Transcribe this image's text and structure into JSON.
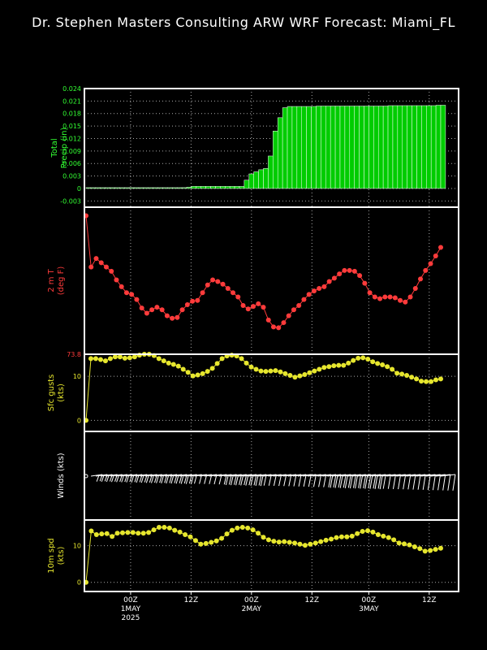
{
  "header": {
    "title": "Dr. Stephen Masters Consulting  ARW WRF Forecast: Miami_FL"
  },
  "colors": {
    "background": "#000000",
    "frame": "#ffffff",
    "grid": "#aaaaaa",
    "precip": "#00cc00",
    "precip_text": "#33ff33",
    "temp": "#ff3b3b",
    "gust": "#e6e62e",
    "wind": "#ffffff"
  },
  "chart_data": [
    {
      "id": "precip",
      "type": "bar",
      "ylabel": [
        "Total",
        "Precip (in)"
      ],
      "yticks": [
        "0.024",
        "0.021",
        "0.018",
        "0.015",
        "0.012",
        "0.009",
        "0.006",
        "0.003",
        "0",
        "-0.003"
      ],
      "ylim": [
        -0.0045,
        0.024
      ],
      "grid": true,
      "values": [
        0,
        0,
        0,
        0,
        0,
        0,
        0,
        0,
        0,
        0,
        0,
        0,
        0,
        0,
        0,
        0,
        0,
        0,
        0,
        0,
        0.0002,
        0.0003,
        0.0005,
        0.0005,
        0.0005,
        0.0005,
        0.0005,
        0.0005,
        0.0005,
        0.0005,
        0.0005,
        0.0005,
        0.0005,
        0.002,
        0.0035,
        0.004,
        0.0045,
        0.0048,
        0.0078,
        0.0138,
        0.017,
        0.0194,
        0.0197,
        0.0197,
        0.0197,
        0.0197,
        0.0197,
        0.0197,
        0.0198,
        0.0198,
        0.0198,
        0.0198,
        0.0198,
        0.0198,
        0.0198,
        0.0198,
        0.0198,
        0.0198,
        0.0198,
        0.0198,
        0.0198,
        0.0198,
        0.0198,
        0.0199,
        0.0199,
        0.0199,
        0.0199,
        0.0199,
        0.0199,
        0.0199,
        0.0199,
        0.0199,
        0.0199,
        0.02,
        0.02
      ]
    },
    {
      "id": "temp",
      "type": "line",
      "ylabel": [
        "2 m T",
        "(deg F)"
      ],
      "yticks": [
        "73.8"
      ],
      "ylim": [
        73.8,
        91
      ],
      "values": [
        90,
        84,
        85,
        84.5,
        84,
        83.5,
        82.5,
        81.7,
        81,
        80.8,
        80.2,
        79.2,
        78.6,
        79,
        79.3,
        79,
        78.3,
        78,
        78.1,
        79,
        79.6,
        80,
        80.1,
        81,
        81.9,
        82.5,
        82.3,
        82,
        81.5,
        81,
        80.5,
        79.5,
        79.1,
        79.4,
        79.7,
        79.3,
        77.8,
        77,
        76.9,
        77.5,
        78.3,
        79,
        79.5,
        80.2,
        80.8,
        81.2,
        81.5,
        81.7,
        82.3,
        82.7,
        83.2,
        83.6,
        83.6,
        83.5,
        83,
        82.1,
        81,
        80.5,
        80.3,
        80.5,
        80.5,
        80.4,
        80.1,
        79.9,
        80.5,
        81.5,
        82.6,
        83.6,
        84.4,
        85.3,
        86.3
      ]
    },
    {
      "id": "gust",
      "type": "line",
      "ylabel": [
        "Sfc gusts",
        "(kts)"
      ],
      "yticks": [
        "10",
        "0"
      ],
      "ylim": [
        -2.5,
        15
      ],
      "values": [
        0,
        14,
        14,
        13.8,
        13.5,
        14,
        14.4,
        14.4,
        14.1,
        14.2,
        14.4,
        14.8,
        15,
        15,
        14.7,
        14,
        13.5,
        13,
        12.7,
        12.3,
        11.6,
        10.9,
        10.1,
        10.3,
        10.6,
        11.1,
        11.8,
        12.9,
        14,
        14.6,
        14.8,
        14.6,
        14,
        13,
        12.1,
        11.6,
        11.2,
        11.1,
        11.2,
        11.3,
        11,
        10.6,
        10.2,
        9.8,
        10.1,
        10.4,
        10.8,
        11.2,
        11.6,
        12,
        12.2,
        12.4,
        12.5,
        12.5,
        13,
        13.6,
        14.1,
        14.2,
        13.9,
        13.3,
        12.9,
        12.6,
        12.2,
        11.6,
        10.7,
        10.5,
        10.2,
        9.8,
        9.4,
        8.9,
        8.8,
        8.8,
        9.2,
        9.4
      ]
    },
    {
      "id": "winds",
      "type": "other",
      "ylabel": [
        "Winds (kts)"
      ]
    },
    {
      "id": "wspd",
      "type": "line",
      "ylabel": [
        "10m spd",
        "(kts)"
      ],
      "yticks": [
        "10",
        "0"
      ],
      "ylim": [
        -2.5,
        17
      ],
      "values": [
        0,
        14,
        13,
        13.2,
        13.3,
        12.5,
        13.4,
        13.5,
        13.6,
        13.6,
        13.4,
        13.4,
        13.6,
        14.3,
        15,
        15,
        14.8,
        14.2,
        13.7,
        13,
        12.4,
        11.4,
        10.4,
        10.6,
        10.9,
        11.3,
        12,
        13.2,
        14.2,
        14.8,
        15,
        14.8,
        14.3,
        13.4,
        12.3,
        11.6,
        11.2,
        11,
        11.1,
        10.9,
        10.7,
        10.4,
        10.1,
        10.4,
        10.7,
        11.1,
        11.5,
        11.8,
        12.2,
        12.4,
        12.4,
        12.6,
        13.3,
        13.9,
        14.1,
        13.7,
        13,
        12.6,
        12.2,
        11.6,
        10.7,
        10.5,
        10.2,
        9.7,
        9.2,
        8.5,
        8.7,
        9,
        9.3
      ]
    }
  ],
  "xaxis": {
    "ticks": [
      {
        "label": "00Z",
        "sub": "1MAY",
        "sub2": "2025",
        "t": 0.13
      },
      {
        "label": "12Z",
        "sub": "",
        "sub2": "",
        "t": 0.3
      },
      {
        "label": "00Z",
        "sub": "2MAY",
        "sub2": "",
        "t": 0.47
      },
      {
        "label": "12Z",
        "sub": "",
        "sub2": "",
        "t": 0.64
      },
      {
        "label": "00Z",
        "sub": "3MAY",
        "sub2": "",
        "t": 0.8
      },
      {
        "label": "12Z",
        "sub": "",
        "sub2": "",
        "t": 0.97
      }
    ]
  }
}
